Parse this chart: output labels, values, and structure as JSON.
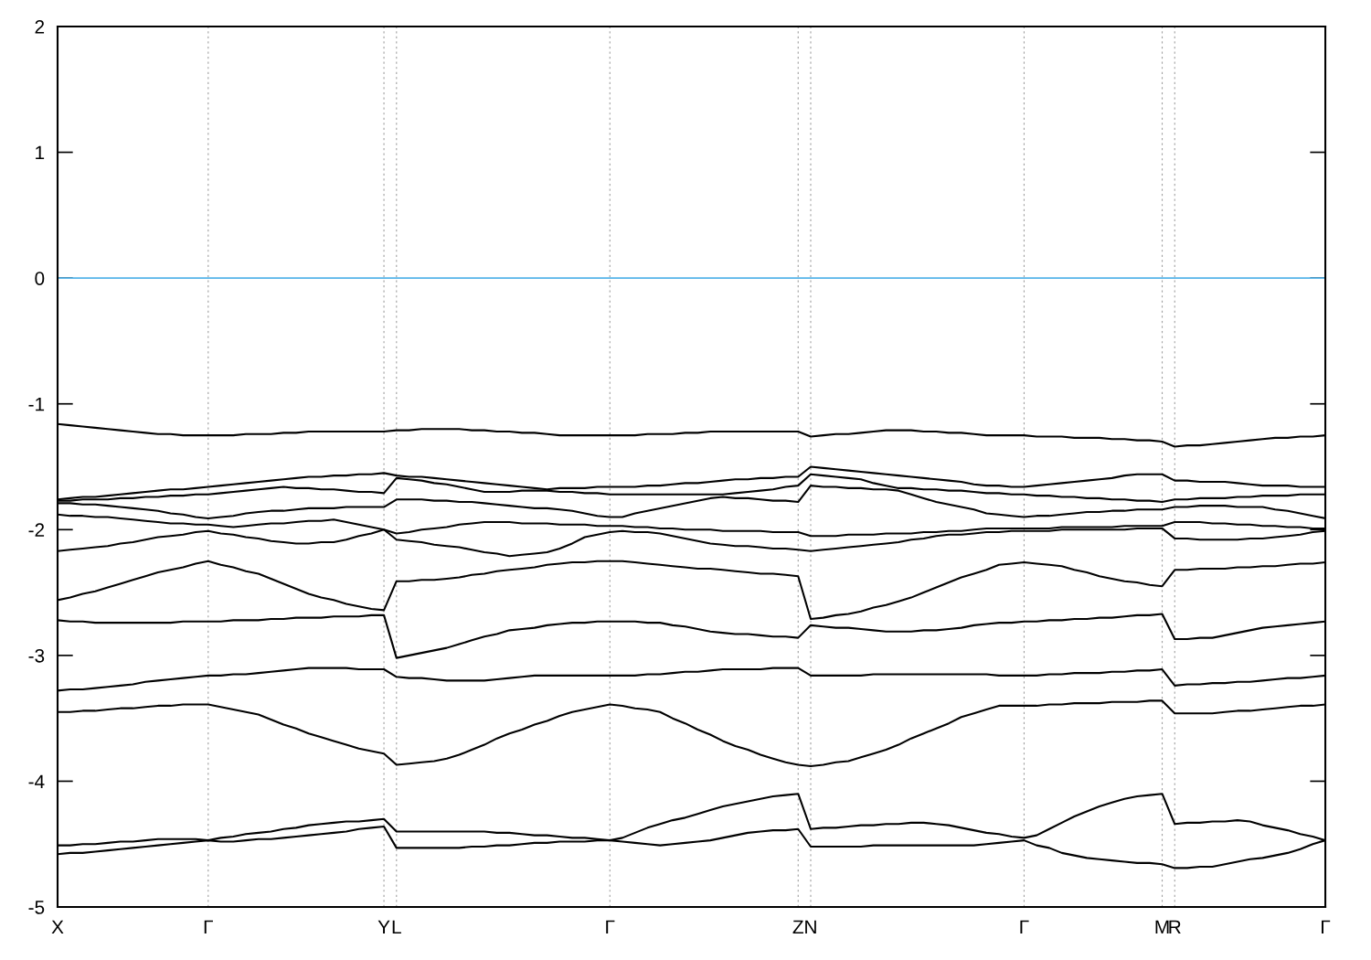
{
  "chart_data": {
    "type": "line",
    "ylim": [
      -5,
      2
    ],
    "categories": [
      "X",
      null,
      null,
      null,
      null,
      null,
      null,
      null,
      null,
      null,
      null,
      null,
      "Γ",
      null,
      null,
      null,
      null,
      null,
      null,
      null,
      null,
      null,
      null,
      null,
      null,
      null,
      "Y",
      "L",
      null,
      null,
      null,
      null,
      null,
      null,
      null,
      null,
      null,
      null,
      null,
      null,
      null,
      null,
      null,
      null,
      "Γ",
      null,
      null,
      null,
      null,
      null,
      null,
      null,
      null,
      null,
      null,
      null,
      null,
      null,
      null,
      "Z",
      "N",
      null,
      null,
      null,
      null,
      null,
      null,
      null,
      null,
      null,
      null,
      null,
      null,
      null,
      null,
      null,
      null,
      "Γ",
      null,
      null,
      null,
      null,
      null,
      null,
      null,
      null,
      null,
      null,
      "M",
      "R",
      null,
      null,
      null,
      null,
      null,
      null,
      null,
      null,
      null,
      null,
      null,
      "Γ"
    ],
    "yticks": [
      -5,
      -4,
      -3,
      -2,
      -1,
      0,
      1,
      2
    ],
    "grid": "x",
    "marker": "none",
    "line_style": "solid",
    "ref_lines": [
      {
        "axis": "y",
        "value": 0,
        "color": "#56b4e9",
        "line_style": "solid"
      }
    ],
    "series": [
      {
        "color": "#000000",
        "values": [
          -1.16,
          -1.17,
          -1.18,
          -1.19,
          -1.2,
          -1.21,
          -1.22,
          -1.23,
          -1.24,
          -1.24,
          -1.25,
          -1.25,
          -1.25,
          -1.25,
          -1.25,
          -1.24,
          -1.24,
          -1.24,
          -1.23,
          -1.23,
          -1.22,
          -1.22,
          -1.22,
          -1.22,
          -1.22,
          -1.22,
          -1.22,
          -1.21,
          -1.21,
          -1.2,
          -1.2,
          -1.2,
          -1.2,
          -1.21,
          -1.21,
          -1.22,
          -1.22,
          -1.23,
          -1.23,
          -1.24,
          -1.25,
          -1.25,
          -1.25,
          -1.25,
          -1.25,
          -1.25,
          -1.25,
          -1.24,
          -1.24,
          -1.24,
          -1.23,
          -1.23,
          -1.22,
          -1.22,
          -1.22,
          -1.22,
          -1.22,
          -1.22,
          -1.22,
          -1.22,
          -1.26,
          -1.25,
          -1.24,
          -1.24,
          -1.23,
          -1.22,
          -1.21,
          -1.21,
          -1.21,
          -1.22,
          -1.22,
          -1.23,
          -1.23,
          -1.24,
          -1.25,
          -1.25,
          -1.25,
          -1.25,
          -1.26,
          -1.26,
          -1.26,
          -1.27,
          -1.27,
          -1.27,
          -1.28,
          -1.28,
          -1.29,
          -1.29,
          -1.3,
          -1.34,
          -1.33,
          -1.33,
          -1.32,
          -1.31,
          -1.3,
          -1.29,
          -1.28,
          -1.27,
          -1.27,
          -1.26,
          -1.26,
          -1.25
        ]
      },
      {
        "color": "#000000",
        "values": [
          -1.76,
          -1.75,
          -1.74,
          -1.74,
          -1.73,
          -1.72,
          -1.71,
          -1.7,
          -1.69,
          -1.68,
          -1.68,
          -1.67,
          -1.66,
          -1.65,
          -1.64,
          -1.63,
          -1.62,
          -1.61,
          -1.6,
          -1.59,
          -1.58,
          -1.58,
          -1.57,
          -1.57,
          -1.56,
          -1.56,
          -1.55,
          -1.57,
          -1.58,
          -1.58,
          -1.59,
          -1.6,
          -1.61,
          -1.62,
          -1.63,
          -1.64,
          -1.65,
          -1.66,
          -1.67,
          -1.68,
          -1.67,
          -1.67,
          -1.67,
          -1.66,
          -1.66,
          -1.66,
          -1.66,
          -1.65,
          -1.65,
          -1.64,
          -1.63,
          -1.63,
          -1.62,
          -1.61,
          -1.6,
          -1.6,
          -1.59,
          -1.59,
          -1.58,
          -1.58,
          -1.5,
          -1.51,
          -1.52,
          -1.53,
          -1.54,
          -1.55,
          -1.56,
          -1.57,
          -1.58,
          -1.59,
          -1.6,
          -1.61,
          -1.62,
          -1.64,
          -1.65,
          -1.65,
          -1.66,
          -1.66,
          -1.65,
          -1.64,
          -1.63,
          -1.62,
          -1.61,
          -1.6,
          -1.59,
          -1.57,
          -1.56,
          -1.56,
          -1.56,
          -1.61,
          -1.61,
          -1.62,
          -1.62,
          -1.62,
          -1.63,
          -1.64,
          -1.65,
          -1.65,
          -1.65,
          -1.66,
          -1.66,
          -1.66
        ]
      },
      {
        "color": "#000000",
        "values": [
          -1.77,
          -1.77,
          -1.76,
          -1.76,
          -1.76,
          -1.75,
          -1.75,
          -1.74,
          -1.74,
          -1.73,
          -1.73,
          -1.72,
          -1.72,
          -1.71,
          -1.7,
          -1.69,
          -1.68,
          -1.67,
          -1.66,
          -1.67,
          -1.67,
          -1.68,
          -1.68,
          -1.69,
          -1.7,
          -1.7,
          -1.71,
          -1.59,
          -1.6,
          -1.61,
          -1.63,
          -1.64,
          -1.66,
          -1.68,
          -1.7,
          -1.7,
          -1.7,
          -1.69,
          -1.69,
          -1.69,
          -1.7,
          -1.7,
          -1.71,
          -1.71,
          -1.72,
          -1.72,
          -1.72,
          -1.72,
          -1.72,
          -1.72,
          -1.72,
          -1.72,
          -1.72,
          -1.72,
          -1.71,
          -1.7,
          -1.69,
          -1.68,
          -1.66,
          -1.65,
          -1.56,
          -1.57,
          -1.58,
          -1.59,
          -1.6,
          -1.63,
          -1.65,
          -1.67,
          -1.67,
          -1.68,
          -1.68,
          -1.69,
          -1.69,
          -1.7,
          -1.71,
          -1.71,
          -1.72,
          -1.72,
          -1.73,
          -1.73,
          -1.74,
          -1.74,
          -1.75,
          -1.75,
          -1.76,
          -1.76,
          -1.77,
          -1.77,
          -1.78,
          -1.76,
          -1.76,
          -1.75,
          -1.75,
          -1.75,
          -1.74,
          -1.74,
          -1.73,
          -1.73,
          -1.73,
          -1.72,
          -1.72,
          -1.72
        ]
      },
      {
        "color": "#000000",
        "values": [
          -1.79,
          -1.79,
          -1.8,
          -1.8,
          -1.81,
          -1.82,
          -1.83,
          -1.84,
          -1.85,
          -1.87,
          -1.88,
          -1.9,
          -1.91,
          -1.9,
          -1.89,
          -1.87,
          -1.86,
          -1.85,
          -1.85,
          -1.84,
          -1.83,
          -1.83,
          -1.83,
          -1.82,
          -1.82,
          -1.82,
          -1.82,
          -1.76,
          -1.76,
          -1.76,
          -1.77,
          -1.77,
          -1.78,
          -1.78,
          -1.79,
          -1.8,
          -1.81,
          -1.82,
          -1.83,
          -1.83,
          -1.84,
          -1.85,
          -1.87,
          -1.89,
          -1.9,
          -1.9,
          -1.87,
          -1.85,
          -1.83,
          -1.81,
          -1.79,
          -1.77,
          -1.75,
          -1.74,
          -1.75,
          -1.75,
          -1.76,
          -1.77,
          -1.77,
          -1.78,
          -1.65,
          -1.66,
          -1.66,
          -1.67,
          -1.67,
          -1.68,
          -1.68,
          -1.69,
          -1.72,
          -1.75,
          -1.78,
          -1.8,
          -1.82,
          -1.84,
          -1.87,
          -1.88,
          -1.89,
          -1.9,
          -1.89,
          -1.89,
          -1.88,
          -1.87,
          -1.86,
          -1.86,
          -1.85,
          -1.85,
          -1.84,
          -1.84,
          -1.84,
          -1.82,
          -1.82,
          -1.81,
          -1.81,
          -1.81,
          -1.82,
          -1.82,
          -1.82,
          -1.84,
          -1.85,
          -1.87,
          -1.89,
          -1.91
        ]
      },
      {
        "color": "#000000",
        "values": [
          -1.88,
          -1.89,
          -1.89,
          -1.9,
          -1.9,
          -1.91,
          -1.92,
          -1.93,
          -1.94,
          -1.95,
          -1.95,
          -1.96,
          -1.96,
          -1.97,
          -1.98,
          -1.97,
          -1.96,
          -1.95,
          -1.95,
          -1.94,
          -1.93,
          -1.93,
          -1.92,
          -1.94,
          -1.96,
          -1.98,
          -2.0,
          -2.03,
          -2.02,
          -2.0,
          -1.99,
          -1.98,
          -1.96,
          -1.95,
          -1.94,
          -1.94,
          -1.94,
          -1.95,
          -1.95,
          -1.95,
          -1.96,
          -1.96,
          -1.96,
          -1.97,
          -1.97,
          -1.97,
          -1.98,
          -1.98,
          -1.99,
          -1.99,
          -2.0,
          -2.0,
          -2.0,
          -2.01,
          -2.01,
          -2.01,
          -2.01,
          -2.02,
          -2.02,
          -2.02,
          -2.05,
          -2.05,
          -2.05,
          -2.04,
          -2.04,
          -2.04,
          -2.03,
          -2.03,
          -2.03,
          -2.02,
          -2.02,
          -2.01,
          -2.01,
          -2.0,
          -1.99,
          -1.99,
          -1.99,
          -1.99,
          -1.99,
          -1.99,
          -1.98,
          -1.98,
          -1.98,
          -1.98,
          -1.98,
          -1.97,
          -1.97,
          -1.97,
          -1.97,
          -1.94,
          -1.94,
          -1.94,
          -1.95,
          -1.95,
          -1.96,
          -1.96,
          -1.97,
          -1.97,
          -1.98,
          -1.98,
          -1.99,
          -1.99
        ]
      },
      {
        "color": "#000000",
        "values": [
          -2.17,
          -2.16,
          -2.15,
          -2.14,
          -2.13,
          -2.11,
          -2.1,
          -2.08,
          -2.06,
          -2.05,
          -2.04,
          -2.02,
          -2.01,
          -2.03,
          -2.04,
          -2.06,
          -2.07,
          -2.09,
          -2.1,
          -2.11,
          -2.11,
          -2.1,
          -2.1,
          -2.08,
          -2.05,
          -2.03,
          -2.0,
          -2.08,
          -2.09,
          -2.1,
          -2.12,
          -2.13,
          -2.14,
          -2.16,
          -2.18,
          -2.19,
          -2.21,
          -2.2,
          -2.19,
          -2.18,
          -2.15,
          -2.11,
          -2.06,
          -2.04,
          -2.02,
          -2.01,
          -2.02,
          -2.02,
          -2.03,
          -2.05,
          -2.07,
          -2.09,
          -2.11,
          -2.12,
          -2.13,
          -2.13,
          -2.14,
          -2.15,
          -2.15,
          -2.16,
          -2.17,
          -2.16,
          -2.15,
          -2.14,
          -2.13,
          -2.12,
          -2.11,
          -2.1,
          -2.08,
          -2.07,
          -2.05,
          -2.04,
          -2.04,
          -2.03,
          -2.02,
          -2.02,
          -2.01,
          -2.01,
          -2.01,
          -2.01,
          -2.0,
          -2.0,
          -2.0,
          -2.0,
          -2.0,
          -2.0,
          -1.99,
          -1.99,
          -1.99,
          -2.07,
          -2.07,
          -2.08,
          -2.08,
          -2.08,
          -2.08,
          -2.07,
          -2.07,
          -2.06,
          -2.05,
          -2.04,
          -2.02,
          -2.01
        ]
      },
      {
        "color": "#000000",
        "values": [
          -2.56,
          -2.54,
          -2.51,
          -2.49,
          -2.46,
          -2.43,
          -2.4,
          -2.37,
          -2.34,
          -2.32,
          -2.3,
          -2.27,
          -2.25,
          -2.28,
          -2.3,
          -2.33,
          -2.35,
          -2.39,
          -2.43,
          -2.47,
          -2.51,
          -2.54,
          -2.56,
          -2.59,
          -2.61,
          -2.63,
          -2.64,
          -2.41,
          -2.41,
          -2.4,
          -2.4,
          -2.39,
          -2.38,
          -2.36,
          -2.35,
          -2.33,
          -2.32,
          -2.31,
          -2.3,
          -2.28,
          -2.27,
          -2.26,
          -2.26,
          -2.25,
          -2.25,
          -2.25,
          -2.26,
          -2.27,
          -2.28,
          -2.29,
          -2.3,
          -2.31,
          -2.31,
          -2.32,
          -2.33,
          -2.34,
          -2.35,
          -2.35,
          -2.36,
          -2.37,
          -2.71,
          -2.7,
          -2.68,
          -2.67,
          -2.65,
          -2.62,
          -2.6,
          -2.57,
          -2.54,
          -2.5,
          -2.46,
          -2.42,
          -2.38,
          -2.35,
          -2.32,
          -2.28,
          -2.27,
          -2.26,
          -2.27,
          -2.28,
          -2.29,
          -2.32,
          -2.34,
          -2.37,
          -2.39,
          -2.41,
          -2.42,
          -2.44,
          -2.45,
          -2.32,
          -2.32,
          -2.31,
          -2.31,
          -2.31,
          -2.3,
          -2.3,
          -2.29,
          -2.29,
          -2.28,
          -2.27,
          -2.27,
          -2.26
        ]
      },
      {
        "color": "#000000",
        "values": [
          -2.72,
          -2.73,
          -2.73,
          -2.74,
          -2.74,
          -2.74,
          -2.74,
          -2.74,
          -2.74,
          -2.74,
          -2.73,
          -2.73,
          -2.73,
          -2.73,
          -2.72,
          -2.72,
          -2.72,
          -2.71,
          -2.71,
          -2.7,
          -2.7,
          -2.7,
          -2.69,
          -2.69,
          -2.69,
          -2.68,
          -2.68,
          -3.02,
          -3.0,
          -2.98,
          -2.96,
          -2.94,
          -2.91,
          -2.88,
          -2.85,
          -2.83,
          -2.8,
          -2.79,
          -2.78,
          -2.76,
          -2.75,
          -2.74,
          -2.74,
          -2.73,
          -2.73,
          -2.73,
          -2.73,
          -2.74,
          -2.74,
          -2.76,
          -2.77,
          -2.79,
          -2.81,
          -2.82,
          -2.83,
          -2.83,
          -2.84,
          -2.85,
          -2.85,
          -2.86,
          -2.76,
          -2.77,
          -2.78,
          -2.78,
          -2.79,
          -2.8,
          -2.81,
          -2.81,
          -2.81,
          -2.8,
          -2.8,
          -2.79,
          -2.78,
          -2.76,
          -2.75,
          -2.74,
          -2.74,
          -2.73,
          -2.73,
          -2.72,
          -2.72,
          -2.71,
          -2.71,
          -2.7,
          -2.7,
          -2.69,
          -2.68,
          -2.68,
          -2.67,
          -2.87,
          -2.87,
          -2.86,
          -2.86,
          -2.84,
          -2.82,
          -2.8,
          -2.78,
          -2.77,
          -2.76,
          -2.75,
          -2.74,
          -2.73
        ]
      },
      {
        "color": "#000000",
        "values": [
          -3.28,
          -3.27,
          -3.27,
          -3.26,
          -3.25,
          -3.24,
          -3.23,
          -3.21,
          -3.2,
          -3.19,
          -3.18,
          -3.17,
          -3.16,
          -3.16,
          -3.15,
          -3.15,
          -3.14,
          -3.13,
          -3.12,
          -3.11,
          -3.1,
          -3.1,
          -3.1,
          -3.1,
          -3.11,
          -3.11,
          -3.11,
          -3.17,
          -3.18,
          -3.18,
          -3.19,
          -3.2,
          -3.2,
          -3.2,
          -3.2,
          -3.19,
          -3.18,
          -3.17,
          -3.16,
          -3.16,
          -3.16,
          -3.16,
          -3.16,
          -3.16,
          -3.16,
          -3.16,
          -3.16,
          -3.15,
          -3.15,
          -3.14,
          -3.13,
          -3.13,
          -3.12,
          -3.11,
          -3.11,
          -3.11,
          -3.11,
          -3.1,
          -3.1,
          -3.1,
          -3.16,
          -3.16,
          -3.16,
          -3.16,
          -3.16,
          -3.15,
          -3.15,
          -3.15,
          -3.15,
          -3.15,
          -3.15,
          -3.15,
          -3.15,
          -3.15,
          -3.15,
          -3.16,
          -3.16,
          -3.16,
          -3.16,
          -3.15,
          -3.15,
          -3.14,
          -3.14,
          -3.14,
          -3.13,
          -3.13,
          -3.12,
          -3.12,
          -3.11,
          -3.24,
          -3.23,
          -3.23,
          -3.22,
          -3.22,
          -3.21,
          -3.21,
          -3.2,
          -3.19,
          -3.18,
          -3.18,
          -3.17,
          -3.16
        ]
      },
      {
        "color": "#000000",
        "values": [
          -3.45,
          -3.45,
          -3.44,
          -3.44,
          -3.43,
          -3.42,
          -3.42,
          -3.41,
          -3.4,
          -3.4,
          -3.39,
          -3.39,
          -3.39,
          -3.41,
          -3.43,
          -3.45,
          -3.47,
          -3.51,
          -3.55,
          -3.58,
          -3.62,
          -3.65,
          -3.68,
          -3.71,
          -3.74,
          -3.76,
          -3.78,
          -3.87,
          -3.86,
          -3.85,
          -3.84,
          -3.82,
          -3.79,
          -3.75,
          -3.71,
          -3.66,
          -3.62,
          -3.59,
          -3.55,
          -3.52,
          -3.48,
          -3.45,
          -3.43,
          -3.41,
          -3.39,
          -3.4,
          -3.42,
          -3.43,
          -3.45,
          -3.5,
          -3.54,
          -3.59,
          -3.63,
          -3.68,
          -3.72,
          -3.75,
          -3.79,
          -3.82,
          -3.85,
          -3.87,
          -3.88,
          -3.87,
          -3.85,
          -3.84,
          -3.81,
          -3.78,
          -3.75,
          -3.71,
          -3.66,
          -3.62,
          -3.58,
          -3.54,
          -3.49,
          -3.46,
          -3.43,
          -3.4,
          -3.4,
          -3.4,
          -3.4,
          -3.39,
          -3.39,
          -3.38,
          -3.38,
          -3.38,
          -3.37,
          -3.37,
          -3.37,
          -3.36,
          -3.36,
          -3.46,
          -3.46,
          -3.46,
          -3.46,
          -3.45,
          -3.44,
          -3.44,
          -3.43,
          -3.42,
          -3.41,
          -3.4,
          -3.4,
          -3.39
        ]
      },
      {
        "color": "#000000",
        "values": [
          -4.51,
          -4.51,
          -4.5,
          -4.5,
          -4.49,
          -4.48,
          -4.48,
          -4.47,
          -4.46,
          -4.46,
          -4.46,
          -4.46,
          -4.47,
          -4.45,
          -4.44,
          -4.42,
          -4.41,
          -4.4,
          -4.38,
          -4.37,
          -4.35,
          -4.34,
          -4.33,
          -4.32,
          -4.32,
          -4.31,
          -4.3,
          -4.4,
          -4.4,
          -4.4,
          -4.4,
          -4.4,
          -4.4,
          -4.4,
          -4.4,
          -4.41,
          -4.41,
          -4.42,
          -4.43,
          -4.43,
          -4.44,
          -4.45,
          -4.45,
          -4.46,
          -4.47,
          -4.45,
          -4.41,
          -4.37,
          -4.34,
          -4.31,
          -4.29,
          -4.26,
          -4.23,
          -4.2,
          -4.18,
          -4.16,
          -4.14,
          -4.12,
          -4.11,
          -4.1,
          -4.38,
          -4.37,
          -4.37,
          -4.36,
          -4.35,
          -4.35,
          -4.34,
          -4.34,
          -4.33,
          -4.33,
          -4.34,
          -4.35,
          -4.37,
          -4.39,
          -4.41,
          -4.42,
          -4.44,
          -4.45,
          -4.43,
          -4.38,
          -4.33,
          -4.28,
          -4.24,
          -4.2,
          -4.17,
          -4.14,
          -4.12,
          -4.11,
          -4.1,
          -4.34,
          -4.33,
          -4.33,
          -4.32,
          -4.32,
          -4.31,
          -4.32,
          -4.35,
          -4.37,
          -4.39,
          -4.42,
          -4.44,
          -4.47
        ]
      },
      {
        "color": "#000000",
        "values": [
          -4.58,
          -4.57,
          -4.57,
          -4.56,
          -4.55,
          -4.54,
          -4.53,
          -4.52,
          -4.51,
          -4.5,
          -4.49,
          -4.48,
          -4.47,
          -4.48,
          -4.48,
          -4.47,
          -4.46,
          -4.46,
          -4.45,
          -4.44,
          -4.43,
          -4.42,
          -4.41,
          -4.4,
          -4.38,
          -4.37,
          -4.36,
          -4.53,
          -4.53,
          -4.53,
          -4.53,
          -4.53,
          -4.53,
          -4.52,
          -4.52,
          -4.51,
          -4.51,
          -4.5,
          -4.49,
          -4.49,
          -4.48,
          -4.48,
          -4.48,
          -4.47,
          -4.47,
          -4.48,
          -4.49,
          -4.5,
          -4.51,
          -4.5,
          -4.49,
          -4.48,
          -4.47,
          -4.45,
          -4.43,
          -4.41,
          -4.4,
          -4.39,
          -4.39,
          -4.38,
          -4.52,
          -4.52,
          -4.52,
          -4.52,
          -4.52,
          -4.51,
          -4.51,
          -4.51,
          -4.51,
          -4.51,
          -4.51,
          -4.51,
          -4.51,
          -4.51,
          -4.5,
          -4.49,
          -4.48,
          -4.47,
          -4.51,
          -4.53,
          -4.57,
          -4.59,
          -4.61,
          -4.62,
          -4.63,
          -4.64,
          -4.65,
          -4.65,
          -4.66,
          -4.69,
          -4.69,
          -4.68,
          -4.68,
          -4.66,
          -4.64,
          -4.62,
          -4.61,
          -4.59,
          -4.57,
          -4.54,
          -4.5,
          -4.47
        ]
      }
    ]
  }
}
